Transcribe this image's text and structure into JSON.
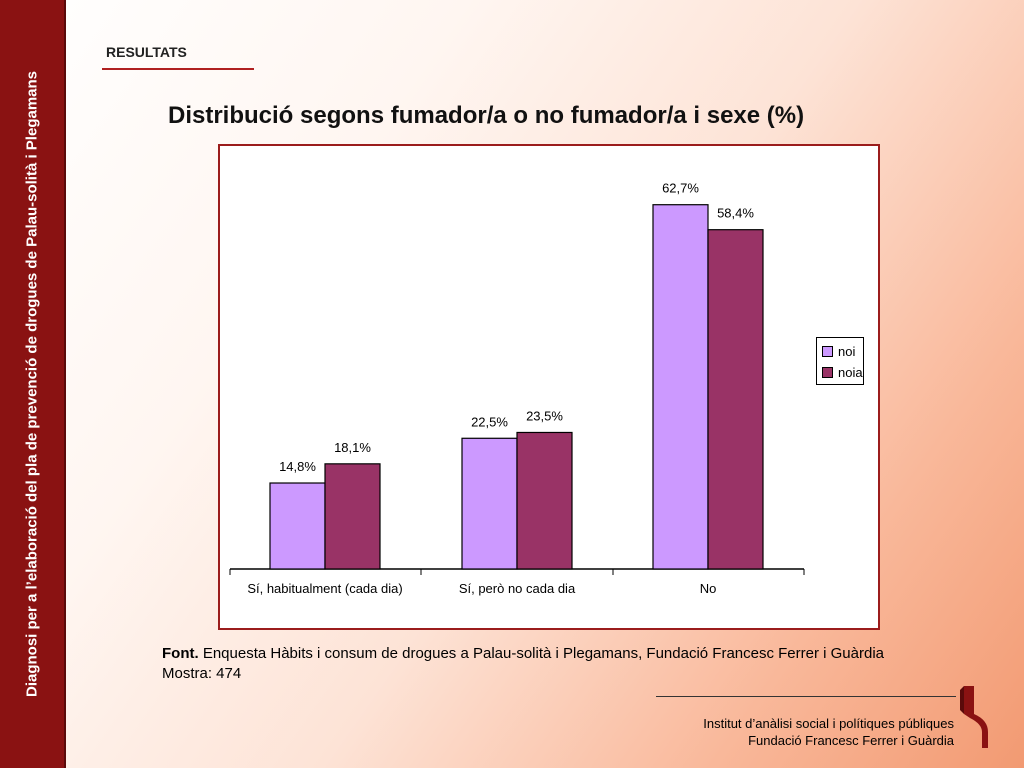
{
  "sidebar": {
    "text": "Diagnosi per a l’elaboració del pla de prevenció de drogues de Palau-solità i Plegamans"
  },
  "section": {
    "label": "RESULTATS"
  },
  "title": "Distribució segons fumador/a o no fumador/a i sexe (%)",
  "chart_data": {
    "type": "bar",
    "title": "Distribució segons fumador/a o no fumador/a i sexe (%)",
    "categories": [
      "Sí, habitualment (cada dia)",
      "Sí, però no cada dia",
      "No"
    ],
    "series": [
      {
        "name": "noi",
        "values": [
          14.8,
          22.5,
          62.7
        ],
        "labels": [
          "14,8%",
          "22,5%",
          "62,7%"
        ],
        "color": "#cc99ff"
      },
      {
        "name": "noia",
        "values": [
          18.1,
          23.5,
          58.4
        ],
        "labels": [
          "18,1%",
          "23,5%",
          "58,4%"
        ],
        "color": "#993366"
      }
    ],
    "ylim": [
      0,
      70
    ],
    "xlabel": "",
    "ylabel": "",
    "grid": false,
    "legend": "right"
  },
  "source": {
    "prefix": "Font.",
    "text": " Enquesta Hàbits i consum de drogues a Palau-solità i Plegamans, Fundació Francesc Ferrer i Guàrdia",
    "sample": "Mostra: 474"
  },
  "footer": {
    "line1": "Institut d’anàlisi social i polítiques públiques",
    "line2": "Fundació Francesc Ferrer i Guàrdia"
  }
}
